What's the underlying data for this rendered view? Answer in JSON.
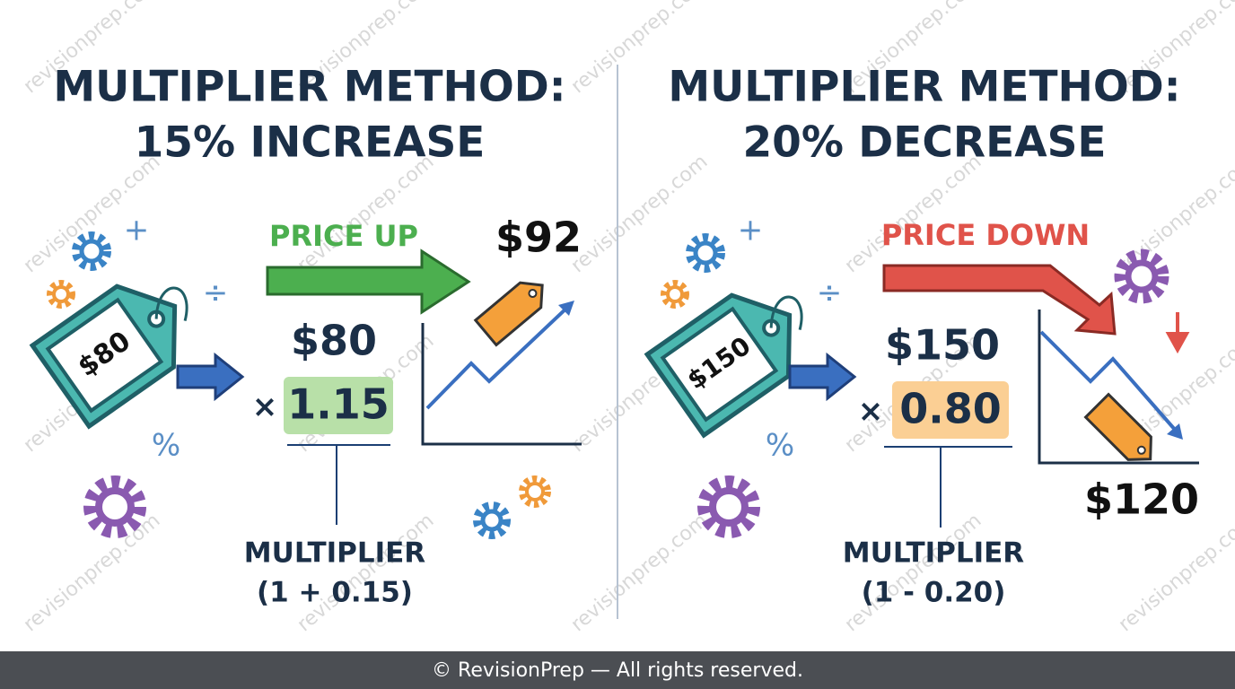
{
  "watermark": "revisionprep.com",
  "footer": "© RevisionPrep — All rights reserved.",
  "panels": [
    {
      "title_line1": "MULTIPLIER METHOD:",
      "title_line2": "15% INCREASE",
      "tag_price": "$80",
      "arrow_label": "PRICE UP",
      "result": "$92",
      "start": "$80",
      "operator": "×",
      "multiplier": "1.15",
      "multiplier_label": "MULTIPLIER",
      "multiplier_formula": "(1 + 0.15)",
      "symbols": [
        "+",
        "÷",
        "%"
      ]
    },
    {
      "title_line1": "MULTIPLIER METHOD:",
      "title_line2": "20% DECREASE",
      "tag_price": "$150",
      "arrow_label": "PRICE DOWN",
      "result": "$120",
      "start": "$150",
      "operator": "×",
      "multiplier": "0.80",
      "multiplier_label": "MULTIPLIER",
      "multiplier_formula": "(1 - 0.20)",
      "symbols": [
        "+",
        "÷",
        "%"
      ]
    }
  ]
}
